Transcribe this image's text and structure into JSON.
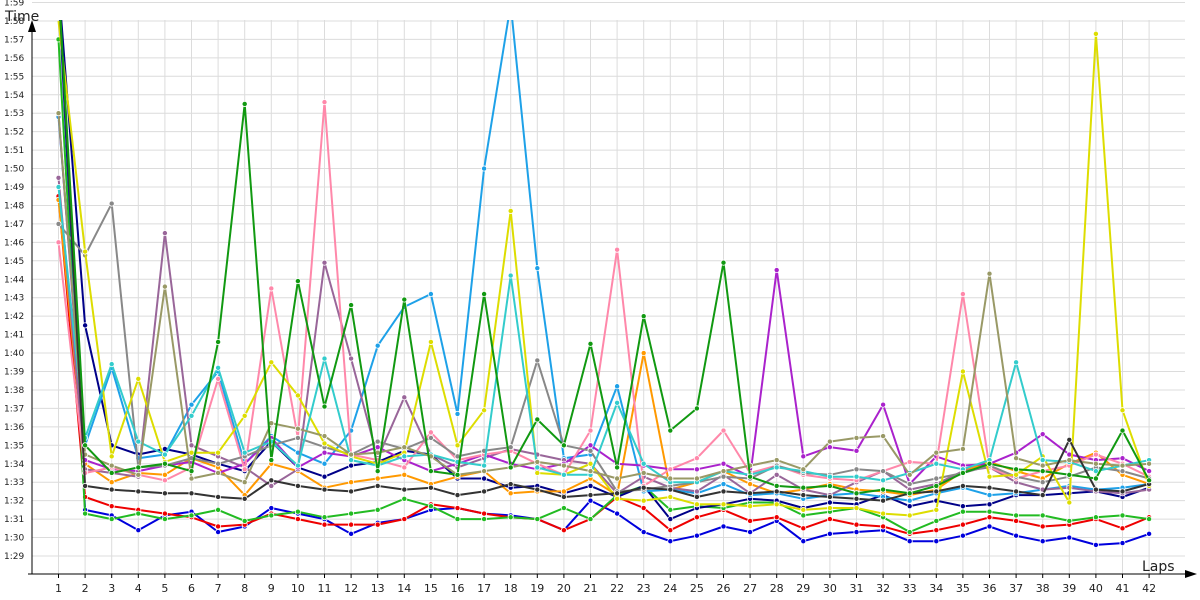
{
  "chart_data": {
    "type": "line",
    "title": "",
    "ylabel": "Time",
    "xlabel": "Laps",
    "x": [
      1,
      2,
      3,
      4,
      5,
      6,
      7,
      8,
      9,
      10,
      11,
      12,
      13,
      14,
      15,
      16,
      17,
      18,
      19,
      20,
      21,
      22,
      23,
      24,
      25,
      26,
      27,
      28,
      29,
      30,
      31,
      32,
      33,
      34,
      35,
      36,
      37,
      38,
      39,
      40,
      41,
      42
    ],
    "xticks": [
      "1",
      "2",
      "3",
      "4",
      "5",
      "6",
      "7",
      "8",
      "9",
      "10",
      "11",
      "12",
      "13",
      "14",
      "15",
      "16",
      "17",
      "18",
      "19",
      "20",
      "21",
      "22",
      "23",
      "24",
      "25",
      "26",
      "27",
      "28",
      "29",
      "30",
      "31",
      "32",
      "33",
      "34",
      "35",
      "36",
      "37",
      "38",
      "39",
      "40",
      "41",
      "42"
    ],
    "yticks": [
      "1:29",
      "1:30",
      "1:31",
      "1:32",
      "1:33",
      "1:34",
      "1:35",
      "1:36",
      "1:37",
      "1:38",
      "1:39",
      "1:40",
      "1:41",
      "1:42",
      "1:43",
      "1:44",
      "1:45",
      "1:46",
      "1:47",
      "1:48",
      "1:49",
      "1:50",
      "1:51",
      "1:52",
      "1:53",
      "1:54",
      "1:55",
      "1:56",
      "1:57",
      "1:58",
      "1:59"
    ],
    "ylim": [
      88,
      120.5
    ],
    "grid": true,
    "legend": "none",
    "series": [
      {
        "color": "#0000dd",
        "values": [
          119.7,
          91.5,
          91.2,
          90.4,
          91.2,
          91.4,
          90.3,
          90.6,
          91.6,
          91.3,
          91.0,
          90.2,
          90.8,
          91.0,
          91.5,
          91.6,
          91.3,
          91.2,
          91.0,
          90.4,
          92.0,
          91.3,
          90.3,
          89.8,
          90.1,
          90.6,
          90.3,
          90.9,
          89.8,
          90.2,
          90.3,
          90.4,
          89.8,
          89.8,
          90.1,
          90.6,
          90.1,
          89.8,
          90.0,
          89.6,
          89.7,
          90.2
        ]
      },
      {
        "color": "#ee0000",
        "values": [
          108.5,
          92.2,
          91.7,
          91.5,
          91.3,
          91.1,
          90.6,
          90.7,
          91.3,
          91.0,
          90.7,
          90.7,
          90.7,
          91.0,
          91.8,
          91.6,
          91.3,
          91.1,
          91.0,
          90.4,
          91.0,
          92.2,
          91.6,
          90.4,
          91.1,
          91.5,
          90.9,
          91.1,
          90.5,
          91.0,
          90.7,
          90.6,
          90.2,
          90.4,
          90.7,
          91.1,
          90.9,
          90.6,
          90.7,
          91.0,
          90.5,
          91.1
        ]
      },
      {
        "color": "#22bb22",
        "values": [
          117.0,
          91.3,
          91.0,
          91.3,
          91.0,
          91.2,
          91.5,
          90.9,
          91.2,
          91.4,
          91.1,
          91.3,
          91.5,
          92.1,
          91.7,
          91.0,
          91.0,
          91.1,
          91.0,
          91.6,
          91.0,
          92.3,
          92.8,
          91.5,
          91.7,
          91.6,
          91.9,
          91.9,
          91.2,
          91.4,
          91.6,
          91.1,
          90.3,
          90.9,
          91.4,
          91.4,
          91.2,
          91.2,
          90.9,
          91.1,
          91.2,
          91.0
        ]
      },
      {
        "color": "#000088",
        "values": [
          120.0,
          101.5,
          95.0,
          94.5,
          94.8,
          94.5,
          94.0,
          93.6,
          95.2,
          93.8,
          93.3,
          93.9,
          94.1,
          94.7,
          94.5,
          93.2,
          93.2,
          92.7,
          92.8,
          92.4,
          92.8,
          92.2,
          92.8,
          91.0,
          91.6,
          91.8,
          92.1,
          92.0,
          91.6,
          91.9,
          91.8,
          92.3,
          91.7,
          92.0,
          91.7,
          91.8,
          92.3,
          92.3,
          92.4,
          92.5,
          92.2,
          92.7
        ]
      },
      {
        "color": "#ff9900",
        "values": [
          108.3,
          94.0,
          93.0,
          93.5,
          93.4,
          94.3,
          93.8,
          92.3,
          94.0,
          93.6,
          92.7,
          93.0,
          93.2,
          93.4,
          92.9,
          93.3,
          93.6,
          92.4,
          92.5,
          92.5,
          93.2,
          92.3,
          100.0,
          92.6,
          93.0,
          93.6,
          92.9,
          92.4,
          92.6,
          92.9,
          92.6,
          92.5,
          92.3,
          92.6,
          93.6,
          94.1,
          93.6,
          93.2,
          94.0,
          94.6,
          93.4,
          92.9
        ]
      },
      {
        "color": "#1ea1e8",
        "values": [
          112.8,
          95.0,
          99.2,
          94.3,
          94.5,
          97.2,
          99.0,
          94.0,
          95.5,
          94.6,
          94.0,
          95.8,
          100.4,
          102.5,
          103.2,
          96.7,
          110.0,
          118.9,
          104.6,
          94.3,
          94.5,
          98.2,
          92.5,
          92.6,
          92.4,
          92.9,
          92.3,
          92.4,
          92.1,
          92.3,
          92.4,
          92.2,
          92.0,
          92.4,
          92.7,
          92.3,
          92.4,
          92.6,
          92.8,
          92.6,
          92.7,
          92.9
        ]
      },
      {
        "color": "#996699",
        "values": [
          109.5,
          93.7,
          93.5,
          93.3,
          106.5,
          95.0,
          94.4,
          93.8,
          92.8,
          93.7,
          104.9,
          99.7,
          94.3,
          97.6,
          94.5,
          93.8,
          94.3,
          94.8,
          94.5,
          94.2,
          94.0,
          92.4,
          93.3,
          92.7,
          92.5,
          93.4,
          92.4,
          93.4,
          92.6,
          92.3,
          93.0,
          93.6,
          92.6,
          92.9,
          93.6,
          93.8,
          93.0,
          92.6,
          92.7,
          92.5,
          92.4,
          92.6
        ]
      },
      {
        "color": "#aa22cc",
        "values": [
          113.0,
          94.2,
          93.7,
          93.6,
          93.9,
          94.1,
          93.5,
          94.0,
          95.4,
          93.8,
          94.6,
          94.4,
          94.9,
          94.2,
          93.6,
          94.0,
          94.5,
          94.0,
          93.7,
          94.0,
          95.0,
          94.0,
          93.9,
          93.7,
          93.7,
          94.0,
          93.3,
          104.5,
          94.4,
          94.9,
          94.7,
          97.2,
          92.9,
          94.4,
          93.9,
          94.0,
          94.6,
          95.6,
          94.5,
          94.2,
          94.3,
          93.6
        ]
      },
      {
        "color": "#ff88aa",
        "values": [
          106.0,
          93.5,
          93.8,
          93.4,
          93.1,
          93.8,
          98.6,
          93.7,
          103.5,
          95.4,
          113.6,
          94.5,
          94.2,
          93.8,
          95.7,
          94.2,
          94.5,
          94.7,
          94.0,
          93.4,
          95.8,
          105.6,
          92.8,
          93.7,
          94.3,
          95.8,
          93.5,
          93.9,
          93.4,
          93.2,
          93.1,
          93.6,
          94.1,
          94.0,
          103.2,
          93.8,
          93.2,
          93.6,
          93.9,
          94.5,
          94.0,
          93.3
        ]
      },
      {
        "color": "#888888",
        "values": [
          107.0,
          105.3,
          108.1,
          93.8,
          93.9,
          94.3,
          94.0,
          94.4,
          95.0,
          95.4,
          94.9,
          94.5,
          95.2,
          94.8,
          95.4,
          94.4,
          94.7,
          94.9,
          99.6,
          95.0,
          94.7,
          92.5,
          92.6,
          92.8,
          93.0,
          93.3,
          93.2,
          93.9,
          93.5,
          93.4,
          93.7,
          93.6,
          92.9,
          93.2,
          93.5,
          93.9,
          93.3,
          93.0,
          93.3,
          93.8,
          93.6,
          93.2
        ]
      },
      {
        "color": "#dddd00",
        "values": [
          118.0,
          105.5,
          94.4,
          98.6,
          94.1,
          94.6,
          94.6,
          96.6,
          99.5,
          97.7,
          95.1,
          94.4,
          94.0,
          94.6,
          100.6,
          95.0,
          96.9,
          107.7,
          93.5,
          93.4,
          94.0,
          92.1,
          92.0,
          92.2,
          91.8,
          91.8,
          91.7,
          91.8,
          91.5,
          91.6,
          91.6,
          91.3,
          91.2,
          91.5,
          99.0,
          93.3,
          93.4,
          94.4,
          91.9,
          117.3,
          96.9,
          92.8
        ]
      },
      {
        "color": "#33cccc",
        "values": [
          109.0,
          95.4,
          99.4,
          95.2,
          94.5,
          96.6,
          99.2,
          94.6,
          95.2,
          93.9,
          99.7,
          94.2,
          93.9,
          94.4,
          94.5,
          94.1,
          93.9,
          104.2,
          93.8,
          93.4,
          93.4,
          97.3,
          94.0,
          93.0,
          93.0,
          93.6,
          93.4,
          93.8,
          93.6,
          93.3,
          93.3,
          93.1,
          93.5,
          94.0,
          93.7,
          94.2,
          99.5,
          94.2,
          94.1,
          93.6,
          93.9,
          94.2
        ]
      },
      {
        "color": "#999966",
        "values": [
          113.0,
          94.5,
          93.9,
          93.4,
          103.6,
          93.2,
          93.5,
          93.0,
          96.2,
          95.9,
          95.5,
          94.5,
          94.6,
          94.9,
          94.4,
          93.4,
          93.6,
          93.8,
          94.1,
          93.9,
          93.6,
          93.2,
          93.5,
          93.2,
          93.2,
          93.6,
          93.9,
          94.2,
          93.7,
          95.2,
          95.4,
          95.5,
          93.4,
          94.6,
          94.8,
          104.3,
          94.3,
          93.9,
          94.2,
          94.0,
          93.9,
          94.0
        ]
      },
      {
        "color": "#333333",
        "values": [
          120.0,
          92.8,
          92.6,
          92.5,
          92.4,
          92.4,
          92.2,
          92.1,
          93.1,
          92.8,
          92.6,
          92.5,
          92.8,
          92.6,
          92.7,
          92.3,
          92.5,
          92.9,
          92.6,
          92.2,
          92.3,
          92.4,
          92.7,
          92.6,
          92.2,
          92.5,
          92.4,
          92.5,
          92.3,
          92.2,
          92.1,
          92.0,
          92.4,
          92.5,
          92.8,
          92.7,
          92.5,
          92.3,
          95.3,
          92.6,
          92.5,
          92.9
        ]
      },
      {
        "color": "#119911",
        "values": [
          120.0,
          95.0,
          93.5,
          93.8,
          94.0,
          93.6,
          100.6,
          113.5,
          94.2,
          103.9,
          97.1,
          102.6,
          93.6,
          102.9,
          93.6,
          93.4,
          103.2,
          93.8,
          96.4,
          95.0,
          100.5,
          93.8,
          102.0,
          95.8,
          97.0,
          104.9,
          93.3,
          92.8,
          92.7,
          92.8,
          92.4,
          92.6,
          92.4,
          92.8,
          93.5,
          94.0,
          93.7,
          93.6,
          93.4,
          93.2,
          95.8,
          93.1
        ]
      }
    ]
  }
}
